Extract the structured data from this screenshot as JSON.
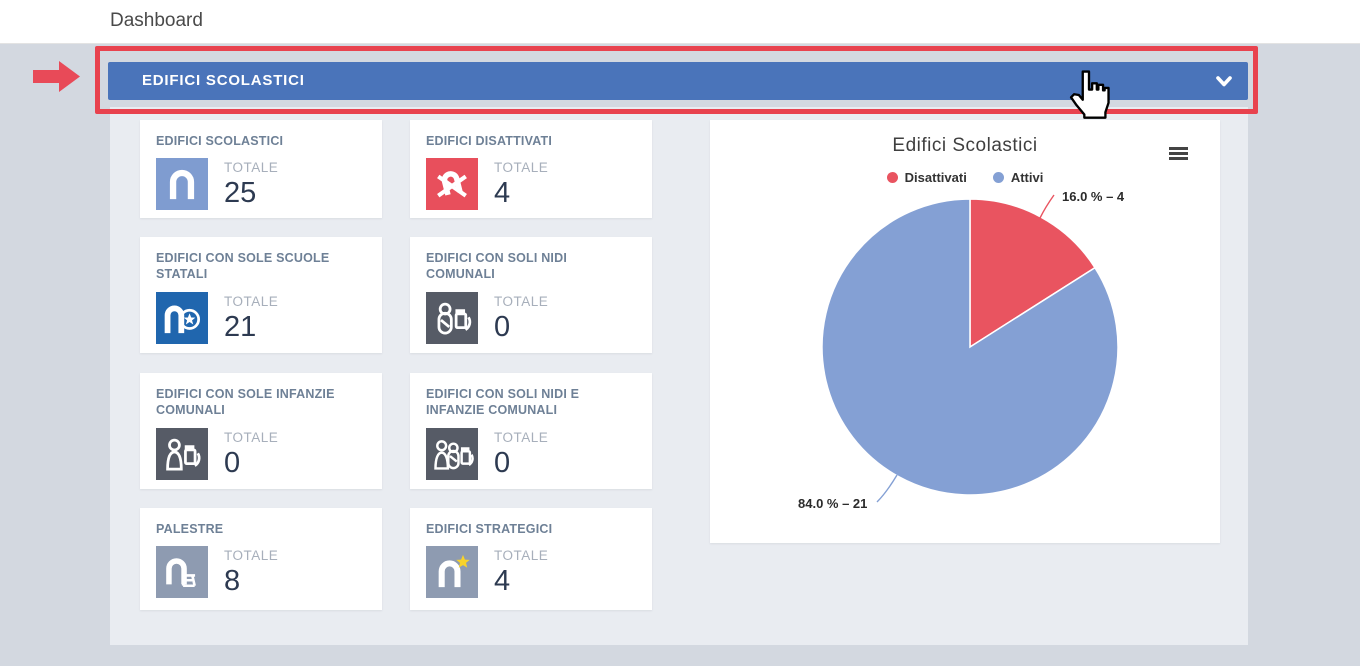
{
  "topbar": {
    "title": "Dashboard"
  },
  "section_header": {
    "title": "EDIFICI SCOLASTICI",
    "chevron_icon": "chevron-down-icon"
  },
  "cards": [
    {
      "title": "EDIFICI SCOLASTICI",
      "total_label": "TOTALE",
      "value": "25",
      "icon": "school-building-icon",
      "icon_bg": "#7f9cd0"
    },
    {
      "title": "EDIFICI DISATTIVATI",
      "total_label": "TOTALE",
      "value": "4",
      "icon": "disabled-building-icon",
      "icon_bg": "#e84f5c"
    },
    {
      "title": "EDIFICI CON SOLE SCUOLE STATALI",
      "total_label": "TOTALE",
      "value": "21",
      "icon": "state-school-building-icon",
      "icon_bg": "#2066ae"
    },
    {
      "title": "EDIFICI CON SOLI NIDI COMUNALI",
      "total_label": "TOTALE",
      "value": "0",
      "icon": "municipal-nursery-icon",
      "icon_bg": "#565b66"
    },
    {
      "title": "EDIFICI CON SOLE INFANZIE COMUNALI",
      "total_label": "TOTALE",
      "value": "0",
      "icon": "municipal-kindergarten-icon",
      "icon_bg": "#565b66"
    },
    {
      "title": "EDIFICI CON SOLI NIDI E INFANZIE COMUNALI",
      "total_label": "TOTALE",
      "value": "0",
      "icon": "municipal-nursery-kindergarten-icon",
      "icon_bg": "#565b66"
    },
    {
      "title": "PALESTRE",
      "total_label": "TOTALE",
      "value": "8",
      "icon": "gym-building-icon",
      "icon_bg": "#8e9bb1"
    },
    {
      "title": "EDIFICI STRATEGICI",
      "total_label": "TOTALE",
      "value": "4",
      "icon": "strategic-building-icon",
      "icon_bg": "#8e9bb1"
    }
  ],
  "chart_data": {
    "type": "pie",
    "title": "Edifici Scolastici",
    "legend_position": "top",
    "start_angle_deg": 0,
    "series": [
      {
        "name": "Disattivati",
        "value": 4,
        "percent": 16.0,
        "label": "16.0 % – 4",
        "color": "#e95460"
      },
      {
        "name": "Attivi",
        "value": 21,
        "percent": 84.0,
        "label": "84.0 % – 21",
        "color": "#84a0d4"
      }
    ],
    "menu_icon": "hamburger-menu-icon"
  },
  "annotation": {
    "highlight_color": "#e8424e",
    "arrow_icon": "red-arrow-icon",
    "cursor_icon": "hand-cursor-icon"
  },
  "colors": {
    "header_bar": "#4a74ba",
    "page_bg": "#d3d8e0",
    "panel_bg": "#e9ecf1"
  }
}
